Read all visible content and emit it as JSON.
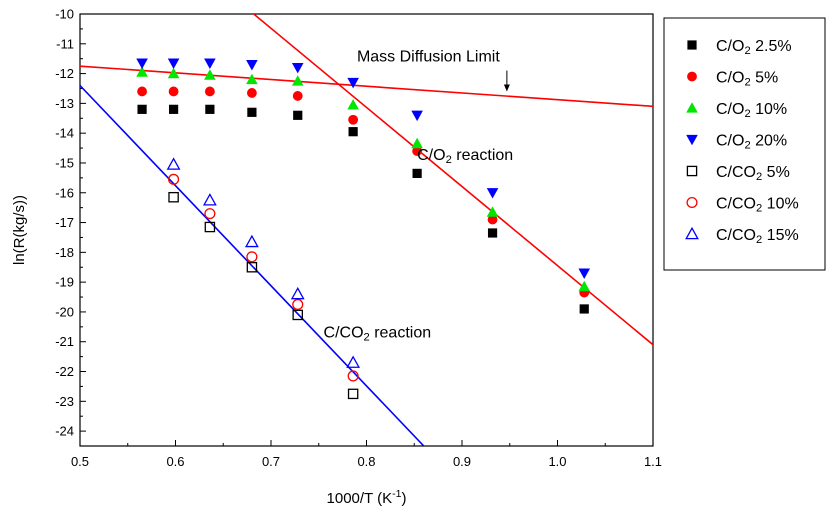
{
  "chart_data": {
    "type": "scatter",
    "xlabel": "1000/T (K",
    "xlabel_sup": "-1",
    "xlabel_tail": ")",
    "ylabel": "ln(R(kg/s))",
    "xlim": [
      0.5,
      1.1
    ],
    "ylim": [
      -24.5,
      -10
    ],
    "xticks": [
      "0.5",
      "0.6",
      "0.7",
      "0.8",
      "0.9",
      "1.0",
      "1.1"
    ],
    "yticks": [
      "-10",
      "-11",
      "-12",
      "-13",
      "-14",
      "-15",
      "-16",
      "-17",
      "-18",
      "-19",
      "-20",
      "-21",
      "-22",
      "-23",
      "-24"
    ],
    "grid": false,
    "legend_position": "right",
    "series": [
      {
        "name": "C/O",
        "sub": "2",
        "suffix": " 2.5%",
        "marker": "square-filled",
        "color": "#000000",
        "x": [
          0.565,
          0.598,
          0.636,
          0.68,
          0.728,
          0.786,
          0.853,
          0.932,
          1.028
        ],
        "y": [
          -13.2,
          -13.2,
          -13.2,
          -13.3,
          -13.4,
          -13.95,
          -15.35,
          -17.35,
          -19.9
        ]
      },
      {
        "name": "C/O",
        "sub": "2",
        "suffix": " 5%",
        "marker": "circle-filled",
        "color": "#ff0000",
        "x": [
          0.565,
          0.598,
          0.636,
          0.68,
          0.728,
          0.786,
          0.853,
          0.932,
          1.028
        ],
        "y": [
          -12.6,
          -12.6,
          -12.6,
          -12.65,
          -12.75,
          -13.55,
          -14.6,
          -16.9,
          -19.35
        ]
      },
      {
        "name": "C/O",
        "sub": "2",
        "suffix": " 10%",
        "marker": "triangle-up-filled",
        "color": "#00e600",
        "x": [
          0.565,
          0.598,
          0.636,
          0.68,
          0.728,
          0.786,
          0.853,
          0.932,
          1.028
        ],
        "y": [
          -11.95,
          -12.0,
          -12.05,
          -12.2,
          -12.25,
          -13.05,
          -14.35,
          -16.65,
          -19.15
        ]
      },
      {
        "name": "C/O",
        "sub": "2",
        "suffix": " 20%",
        "marker": "triangle-down-filled",
        "color": "#0000ff",
        "x": [
          0.565,
          0.598,
          0.636,
          0.68,
          0.728,
          0.786,
          0.853,
          0.932,
          1.028
        ],
        "y": [
          -11.65,
          -11.65,
          -11.65,
          -11.7,
          -11.8,
          -12.3,
          -13.4,
          -16.0,
          -18.7
        ]
      },
      {
        "name": "C/CO",
        "sub": "2",
        "suffix": " 5%",
        "marker": "square-open",
        "color": "#000000",
        "x": [
          0.598,
          0.636,
          0.68,
          0.728,
          0.786
        ],
        "y": [
          -16.15,
          -17.15,
          -18.5,
          -20.1,
          -22.75
        ]
      },
      {
        "name": "C/CO",
        "sub": "2",
        "suffix": " 10%",
        "marker": "circle-open",
        "color": "#ff0000",
        "x": [
          0.598,
          0.636,
          0.68,
          0.728,
          0.786
        ],
        "y": [
          -15.55,
          -16.7,
          -18.15,
          -19.75,
          -22.15
        ]
      },
      {
        "name": "C/CO",
        "sub": "2",
        "suffix": " 15%",
        "marker": "triangle-up-open",
        "color": "#0000ff",
        "x": [
          0.598,
          0.636,
          0.68,
          0.728,
          0.786
        ],
        "y": [
          -15.05,
          -16.25,
          -17.65,
          -19.4,
          -21.7
        ]
      }
    ],
    "fit_lines": [
      {
        "color": "#ff0000",
        "x": [
          0.68,
          1.1
        ],
        "y": [
          -9.95,
          -21.1
        ]
      },
      {
        "color": "#ff0000",
        "x": [
          0.5,
          1.1
        ],
        "y": [
          -11.75,
          -13.1
        ]
      },
      {
        "color": "#0000ff",
        "x": [
          0.5,
          0.86
        ],
        "y": [
          -12.4,
          -24.5
        ]
      }
    ],
    "annotations": {
      "mass_diffusion": {
        "text": "Mass Diffusion Limit",
        "x": 0.79,
        "y": -11.6
      },
      "arrow": {
        "x": 0.947,
        "y_from": -11.9,
        "y_to": -12.6
      },
      "co2_reaction_o2": {
        "pre": "C/O",
        "sub": "2",
        "post": " reaction",
        "x": 0.853,
        "y": -14.9
      },
      "co2_reaction_co2": {
        "pre": "C/CO",
        "sub": "2",
        "post": " reaction",
        "x": 0.755,
        "y": -20.85
      }
    }
  }
}
